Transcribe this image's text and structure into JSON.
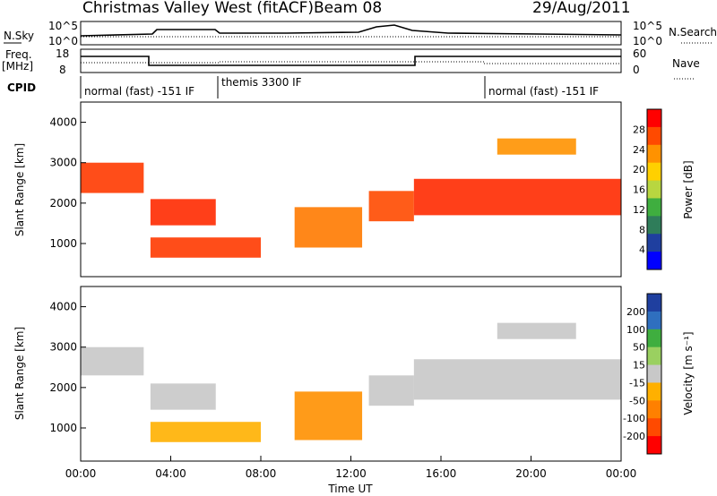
{
  "header": {
    "title": "Christmas Valley West (fitACF)",
    "beam": "Beam 08",
    "date": "29/Aug/2011"
  },
  "panels": {
    "nsky_label": "N.Sky",
    "nsearch_label": "N.Search",
    "nsky_ticks": [
      "10^5",
      "10^0"
    ],
    "nsky_ticks_right": [
      "10^5",
      "10^0"
    ],
    "freq_label_1": "Freq.",
    "freq_label_2": "[MHz]",
    "freq_ticks": [
      "18",
      "8"
    ],
    "nave_ticks": [
      "60",
      "0"
    ],
    "nave_label": "Nave",
    "cpid_label": "CPID",
    "cpid_modes": [
      "normal (fast) -151 IF",
      "themis 3300 IF",
      "normal (fast) -151 IF"
    ]
  },
  "chart_data": [
    {
      "type": "heatmap",
      "name": "power",
      "ylabel": "Slant Range [km]",
      "yticks": [
        "4000",
        "3000",
        "2000",
        "1000"
      ],
      "ylim": [
        180,
        4500
      ],
      "xlim_hours": [
        0,
        24
      ],
      "colorbar_label": "Power [dB]",
      "colorbar_ticks": [
        "28",
        "24",
        "20",
        "16",
        "12",
        "8",
        "4"
      ],
      "colorbar_colors": [
        "#ff0000",
        "#ff4a00",
        "#ff9200",
        "#ffd000",
        "#b8d640",
        "#3fae3f",
        "#2f7d5a",
        "#1f3f9f",
        "#0000ff"
      ],
      "bands": [
        {
          "t0": 0.0,
          "t1": 2.8,
          "r0": 2250,
          "r1": 3000,
          "color": "#ff3a00"
        },
        {
          "t0": 3.1,
          "t1": 6.0,
          "r0": 1450,
          "r1": 2100,
          "color": "#ff2a00"
        },
        {
          "t0": 3.1,
          "t1": 8.0,
          "r0": 650,
          "r1": 1150,
          "color": "#ff3a00"
        },
        {
          "t0": 9.5,
          "t1": 12.5,
          "r0": 900,
          "r1": 1900,
          "color": "#ff7a00"
        },
        {
          "t0": 12.8,
          "t1": 14.8,
          "r0": 1550,
          "r1": 2300,
          "color": "#ff4a00"
        },
        {
          "t0": 14.8,
          "t1": 24.0,
          "r0": 1700,
          "r1": 2600,
          "color": "#ff2a00"
        },
        {
          "t0": 18.5,
          "t1": 22.0,
          "r0": 3200,
          "r1": 3600,
          "color": "#ff9200"
        }
      ]
    },
    {
      "type": "heatmap",
      "name": "velocity",
      "ylabel": "Slant Range [km]",
      "yticks": [
        "4000",
        "3000",
        "2000",
        "1000"
      ],
      "ylim": [
        180,
        4500
      ],
      "xlim_hours": [
        0,
        24
      ],
      "xticks": [
        "00:00",
        "04:00",
        "08:00",
        "12:00",
        "16:00",
        "20:00",
        "00:00"
      ],
      "xlabel": "Time UT",
      "colorbar_label": "Velocity [m s⁻¹]",
      "colorbar_ticks": [
        "200",
        "100",
        "50",
        "15",
        "-15",
        "-50",
        "-100",
        "-200"
      ],
      "colorbar_colors": [
        "#1f3f9f",
        "#2f6fbf",
        "#3fae3f",
        "#9ad060",
        "#c8c8c8",
        "#ffb000",
        "#ff8000",
        "#ff4a00",
        "#ff0000"
      ],
      "bands": [
        {
          "t0": 0.0,
          "t1": 2.8,
          "r0": 2300,
          "r1": 3000,
          "color": "#c8c8c8"
        },
        {
          "t0": 3.1,
          "t1": 6.0,
          "r0": 1450,
          "r1": 2100,
          "color": "#c8c8c8"
        },
        {
          "t0": 3.1,
          "t1": 8.0,
          "r0": 650,
          "r1": 1150,
          "color": "#ffb000"
        },
        {
          "t0": 9.5,
          "t1": 12.5,
          "r0": 700,
          "r1": 1900,
          "color": "#ff9000"
        },
        {
          "t0": 12.8,
          "t1": 14.8,
          "r0": 1550,
          "r1": 2300,
          "color": "#c8c8c8"
        },
        {
          "t0": 14.8,
          "t1": 24.0,
          "r0": 1700,
          "r1": 2700,
          "color": "#c8c8c8"
        },
        {
          "t0": 18.5,
          "t1": 22.0,
          "r0": 3200,
          "r1": 3600,
          "color": "#c8c8c8"
        }
      ]
    }
  ]
}
